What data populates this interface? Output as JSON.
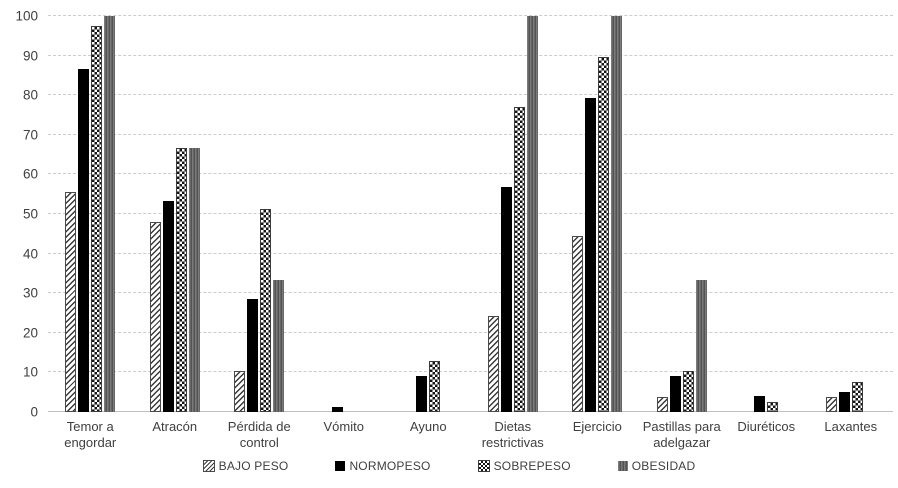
{
  "chart_data": {
    "type": "bar",
    "title": "",
    "xlabel": "",
    "ylabel": "",
    "categories": [
      "Temor a engordar",
      "Atracón",
      "Pérdida de control",
      "Vómito",
      "Ayuno",
      "Dietas restrictivas",
      "Ejercicio",
      "Pastillas para adelgazar",
      "Diuréticos",
      "Laxantes"
    ],
    "series": [
      {
        "name": "BAJO PESO",
        "pattern": "diagonal-hatch",
        "values": [
          55.6,
          48.1,
          10.3,
          0,
          0,
          24.3,
          44.4,
          3.7,
          0,
          3.7
        ]
      },
      {
        "name": "NORMOPESO",
        "pattern": "solid-black",
        "values": [
          86.7,
          53.3,
          28.6,
          1.3,
          9.0,
          56.7,
          79.3,
          9.0,
          4.0,
          5.0
        ]
      },
      {
        "name": "SOBREPESO",
        "pattern": "checkerboard",
        "values": [
          97.4,
          66.7,
          51.3,
          0,
          12.8,
          76.9,
          89.7,
          10.3,
          2.6,
          7.7
        ]
      },
      {
        "name": "OBESIDAD",
        "pattern": "gray-vertical-stripe",
        "values": [
          100,
          66.7,
          33.3,
          0,
          0,
          100,
          100,
          33.3,
          0,
          0
        ]
      }
    ],
    "ylim": [
      0,
      100
    ],
    "ytick_step": 10,
    "yticks": [
      0,
      10,
      20,
      30,
      40,
      50,
      60,
      70,
      80,
      90,
      100
    ],
    "grid": true,
    "legend_position": "bottom"
  },
  "colors": {
    "background": "#ffffff",
    "axis_text": "#3f3f3f",
    "gridline": "#cccccc",
    "series_black": "#000000",
    "hatch_line": "#3a3a3a",
    "gray_fill": "#666666",
    "gray_stripe_dark": "#535353"
  }
}
